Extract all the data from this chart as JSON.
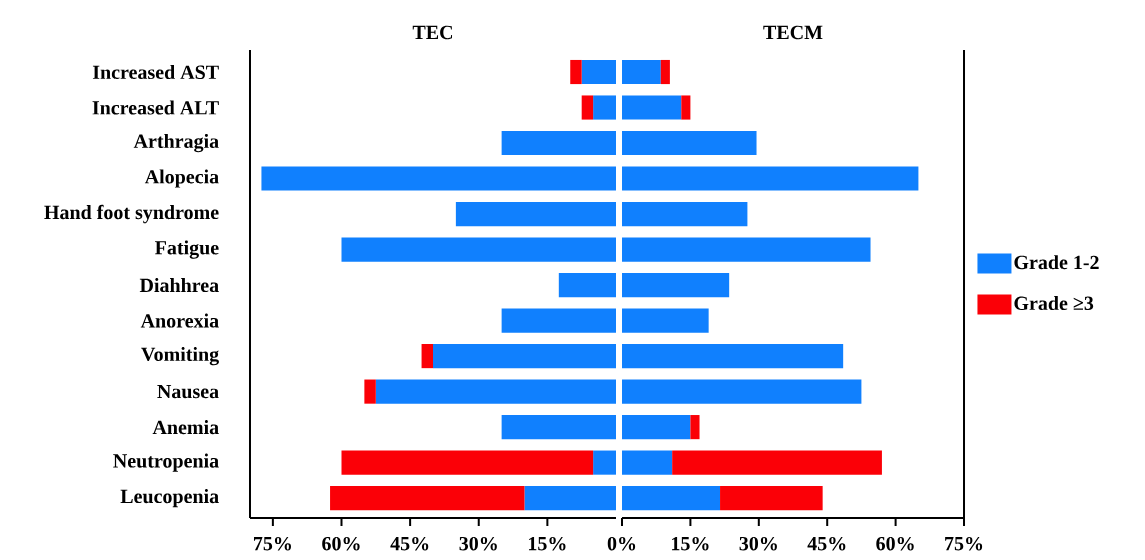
{
  "chart_data": [
    {
      "type": "bar",
      "orientation": "horizontal",
      "stacked": true,
      "title": "TEC",
      "categories": [
        "Increased AST",
        "Increased ALT",
        "Arthragia",
        "Alopecia",
        "Hand foot syndrome",
        "Fatigue",
        "Diahhrea",
        "Anorexia",
        "Vomiting",
        "Nausea",
        "Anemia",
        "Neutropenia",
        "Leucopenia"
      ],
      "series": [
        {
          "color": "#1080fe",
          "values": [
            7.5,
            5,
            25,
            77.5,
            35,
            60,
            12.5,
            25,
            40,
            52.5,
            25,
            5,
            20
          ]
        },
        {
          "color": "#fb0007",
          "values": [
            2.5,
            2.5,
            null,
            null,
            null,
            null,
            null,
            null,
            2.5,
            2.5,
            null,
            55,
            42.5
          ]
        }
      ],
      "xlim": [
        80,
        0
      ],
      "xticks": [
        {
          "value": 75,
          "label": "75%"
        },
        {
          "value": 60,
          "label": "60%"
        },
        {
          "value": 45,
          "label": "45%"
        },
        {
          "value": 30,
          "label": "30%"
        },
        {
          "value": 15,
          "label": "15%"
        }
      ],
      "tick_labels": true
    },
    {
      "type": "bar",
      "orientation": "horizontal",
      "stacked": true,
      "title": "TECM",
      "categories": [
        null,
        null,
        null,
        null,
        null,
        null,
        null,
        null,
        null,
        null,
        null,
        null,
        null
      ],
      "series": [
        {
          "name": "Grade 1-2",
          "color": "#1080fe",
          "values": [
            8.5,
            13,
            29.5,
            65,
            27.5,
            54.5,
            23.5,
            19,
            48.5,
            52.5,
            15,
            11,
            21.5
          ]
        },
        {
          "name": "Grade ≥3",
          "color": "#fb0007",
          "values": [
            2,
            2,
            null,
            null,
            null,
            null,
            null,
            null,
            null,
            null,
            2,
            46,
            22.5
          ]
        }
      ],
      "xlim": [
        0,
        75
      ],
      "xticks": [
        {
          "value": 0,
          "label": "0%"
        },
        {
          "value": 15,
          "label": "15%"
        },
        {
          "value": 30,
          "label": "30%"
        },
        {
          "value": 45,
          "label": "45%"
        },
        {
          "value": 60,
          "label": "60%"
        },
        {
          "value": 75,
          "label": "75%"
        }
      ],
      "tick_labels": "x",
      "legend": "right"
    }
  ]
}
